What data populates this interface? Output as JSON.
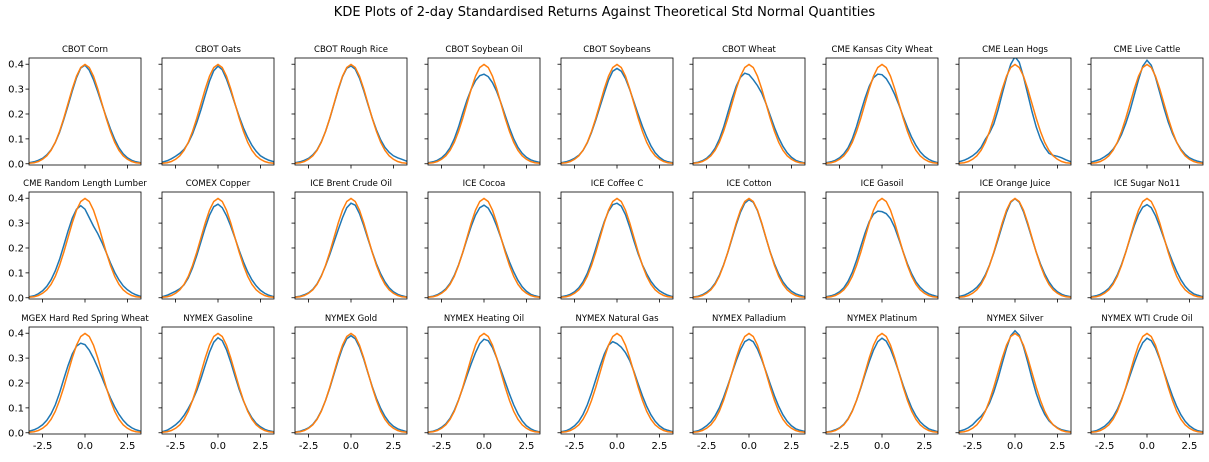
{
  "figure": {
    "title": "KDE Plots of 2-day Standardised Returns Against Theoretical Std Normal Quantities"
  },
  "colors": {
    "kde": "#1f77b4",
    "normal": "#ff7f0e",
    "axes": "#000000",
    "background": "#ffffff"
  },
  "chart_data": {
    "type": "line",
    "layout": "3x9 grid of subplots with shared x and y axes",
    "xlim": [
      -3.3,
      3.3
    ],
    "ylim": [
      -0.005,
      0.425
    ],
    "xticks": [
      -2.5,
      0.0,
      2.5
    ],
    "xtick_labels": [
      "-2.5",
      "0.0",
      "2.5"
    ],
    "yticks": [
      0.0,
      0.1,
      0.2,
      0.3,
      0.4
    ],
    "ytick_labels": [
      "0.0",
      "0.1",
      "0.2",
      "0.3",
      "0.4"
    ],
    "grid": false,
    "x": [
      -3.3,
      -3.0,
      -2.75,
      -2.5,
      -2.25,
      -2.0,
      -1.75,
      -1.5,
      -1.25,
      -1.0,
      -0.75,
      -0.5,
      -0.25,
      0.0,
      0.25,
      0.5,
      0.75,
      1.0,
      1.25,
      1.5,
      1.75,
      2.0,
      2.25,
      2.5,
      2.75,
      3.0,
      3.3
    ],
    "normal_reference": [
      0.002,
      0.004,
      0.009,
      0.018,
      0.032,
      0.054,
      0.086,
      0.13,
      0.183,
      0.242,
      0.301,
      0.352,
      0.387,
      0.399,
      0.387,
      0.352,
      0.301,
      0.242,
      0.183,
      0.13,
      0.086,
      0.054,
      0.032,
      0.018,
      0.009,
      0.004,
      0.002
    ],
    "subplots": [
      {
        "title": "CBOT Corn",
        "kde": [
          0.004,
          0.008,
          0.014,
          0.022,
          0.036,
          0.056,
          0.086,
          0.126,
          0.178,
          0.234,
          0.292,
          0.346,
          0.385,
          0.396,
          0.376,
          0.338,
          0.29,
          0.238,
          0.188,
          0.14,
          0.098,
          0.064,
          0.04,
          0.024,
          0.014,
          0.008,
          0.004
        ]
      },
      {
        "title": "CBOT Oats",
        "kde": [
          0.006,
          0.012,
          0.02,
          0.03,
          0.042,
          0.058,
          0.084,
          0.12,
          0.166,
          0.218,
          0.276,
          0.332,
          0.374,
          0.392,
          0.378,
          0.34,
          0.292,
          0.24,
          0.19,
          0.144,
          0.106,
          0.074,
          0.05,
          0.032,
          0.022,
          0.014,
          0.008
        ]
      },
      {
        "title": "CBOT Rough Rice",
        "kde": [
          0.004,
          0.008,
          0.014,
          0.022,
          0.036,
          0.056,
          0.088,
          0.13,
          0.182,
          0.24,
          0.298,
          0.35,
          0.384,
          0.393,
          0.38,
          0.344,
          0.294,
          0.238,
          0.184,
          0.136,
          0.096,
          0.066,
          0.046,
          0.032,
          0.024,
          0.018,
          0.01
        ]
      },
      {
        "title": "CBOT Soybean Oil",
        "kde": [
          0.004,
          0.008,
          0.014,
          0.024,
          0.04,
          0.064,
          0.1,
          0.148,
          0.204,
          0.256,
          0.3,
          0.334,
          0.354,
          0.36,
          0.35,
          0.326,
          0.29,
          0.244,
          0.194,
          0.144,
          0.1,
          0.066,
          0.042,
          0.026,
          0.016,
          0.01,
          0.005
        ]
      },
      {
        "title": "CBOT Soybeans",
        "kde": [
          0.004,
          0.008,
          0.014,
          0.022,
          0.034,
          0.054,
          0.084,
          0.126,
          0.176,
          0.23,
          0.284,
          0.336,
          0.372,
          0.383,
          0.372,
          0.342,
          0.298,
          0.248,
          0.198,
          0.15,
          0.108,
          0.072,
          0.044,
          0.026,
          0.014,
          0.008,
          0.004
        ]
      },
      {
        "title": "CBOT Wheat",
        "kde": [
          0.003,
          0.006,
          0.012,
          0.022,
          0.038,
          0.062,
          0.098,
          0.146,
          0.204,
          0.262,
          0.312,
          0.348,
          0.364,
          0.358,
          0.338,
          0.314,
          0.284,
          0.242,
          0.194,
          0.146,
          0.104,
          0.07,
          0.044,
          0.026,
          0.014,
          0.008,
          0.003
        ]
      },
      {
        "title": "CME Kansas City Wheat",
        "kde": [
          0.004,
          0.008,
          0.014,
          0.024,
          0.04,
          0.064,
          0.1,
          0.15,
          0.208,
          0.264,
          0.312,
          0.346,
          0.36,
          0.358,
          0.342,
          0.314,
          0.278,
          0.236,
          0.19,
          0.146,
          0.106,
          0.074,
          0.048,
          0.03,
          0.018,
          0.01,
          0.004
        ]
      },
      {
        "title": "CME Lean Hogs",
        "kde": [
          0.008,
          0.014,
          0.022,
          0.032,
          0.046,
          0.066,
          0.098,
          0.124,
          0.16,
          0.216,
          0.282,
          0.346,
          0.4,
          0.43,
          0.408,
          0.35,
          0.28,
          0.21,
          0.148,
          0.1,
          0.066,
          0.042,
          0.034,
          0.03,
          0.024,
          0.016,
          0.008
        ]
      },
      {
        "title": "CME Live Cattle",
        "kde": [
          0.006,
          0.012,
          0.018,
          0.028,
          0.04,
          0.058,
          0.084,
          0.118,
          0.162,
          0.214,
          0.276,
          0.338,
          0.392,
          0.416,
          0.396,
          0.348,
          0.286,
          0.224,
          0.168,
          0.122,
          0.086,
          0.058,
          0.038,
          0.024,
          0.016,
          0.01,
          0.005
        ]
      },
      {
        "title": "CME Random Length Lumber",
        "kde": [
          0.004,
          0.008,
          0.016,
          0.028,
          0.046,
          0.072,
          0.108,
          0.154,
          0.21,
          0.268,
          0.32,
          0.356,
          0.37,
          0.356,
          0.322,
          0.288,
          0.258,
          0.222,
          0.182,
          0.14,
          0.102,
          0.072,
          0.048,
          0.032,
          0.02,
          0.012,
          0.005
        ]
      },
      {
        "title": "COMEX Copper",
        "kde": [
          0.004,
          0.01,
          0.018,
          0.026,
          0.036,
          0.052,
          0.08,
          0.12,
          0.17,
          0.226,
          0.282,
          0.332,
          0.366,
          0.376,
          0.362,
          0.33,
          0.288,
          0.24,
          0.19,
          0.144,
          0.104,
          0.072,
          0.048,
          0.03,
          0.018,
          0.01,
          0.004
        ]
      },
      {
        "title": "ICE Brent Crude Oil",
        "kde": [
          0.003,
          0.006,
          0.012,
          0.02,
          0.034,
          0.056,
          0.088,
          0.128,
          0.174,
          0.224,
          0.274,
          0.322,
          0.362,
          0.38,
          0.372,
          0.338,
          0.29,
          0.236,
          0.184,
          0.136,
          0.096,
          0.064,
          0.04,
          0.024,
          0.014,
          0.008,
          0.003
        ]
      },
      {
        "title": "ICE Cocoa",
        "kde": [
          0.003,
          0.006,
          0.012,
          0.022,
          0.036,
          0.058,
          0.09,
          0.132,
          0.182,
          0.236,
          0.288,
          0.332,
          0.362,
          0.372,
          0.36,
          0.33,
          0.288,
          0.24,
          0.19,
          0.144,
          0.104,
          0.07,
          0.044,
          0.026,
          0.014,
          0.008,
          0.003
        ]
      },
      {
        "title": "ICE Coffee C",
        "kde": [
          0.004,
          0.008,
          0.014,
          0.024,
          0.04,
          0.064,
          0.098,
          0.144,
          0.198,
          0.254,
          0.306,
          0.348,
          0.374,
          0.38,
          0.368,
          0.334,
          0.284,
          0.228,
          0.176,
          0.132,
          0.096,
          0.066,
          0.044,
          0.028,
          0.018,
          0.01,
          0.004
        ]
      },
      {
        "title": "ICE Cotton",
        "kde": [
          0.003,
          0.006,
          0.012,
          0.022,
          0.036,
          0.058,
          0.09,
          0.132,
          0.182,
          0.238,
          0.294,
          0.344,
          0.38,
          0.394,
          0.384,
          0.35,
          0.298,
          0.24,
          0.184,
          0.136,
          0.096,
          0.064,
          0.042,
          0.026,
          0.016,
          0.01,
          0.004
        ]
      },
      {
        "title": "ICE Gasoil",
        "kde": [
          0.004,
          0.008,
          0.014,
          0.024,
          0.04,
          0.066,
          0.102,
          0.15,
          0.206,
          0.26,
          0.306,
          0.336,
          0.348,
          0.346,
          0.338,
          0.318,
          0.282,
          0.234,
          0.184,
          0.136,
          0.096,
          0.064,
          0.042,
          0.026,
          0.016,
          0.01,
          0.004
        ]
      },
      {
        "title": "ICE Orange Juice",
        "kde": [
          0.005,
          0.01,
          0.018,
          0.028,
          0.042,
          0.062,
          0.092,
          0.132,
          0.18,
          0.234,
          0.29,
          0.344,
          0.384,
          0.398,
          0.384,
          0.346,
          0.294,
          0.238,
          0.184,
          0.136,
          0.096,
          0.064,
          0.04,
          0.024,
          0.014,
          0.008,
          0.004
        ]
      },
      {
        "title": "ICE Sugar No11",
        "kde": [
          0.004,
          0.008,
          0.014,
          0.024,
          0.038,
          0.06,
          0.092,
          0.134,
          0.184,
          0.238,
          0.29,
          0.334,
          0.364,
          0.374,
          0.362,
          0.33,
          0.286,
          0.238,
          0.19,
          0.146,
          0.106,
          0.072,
          0.046,
          0.028,
          0.016,
          0.01,
          0.004
        ]
      },
      {
        "title": "MGEX Hard Red Spring Wheat",
        "kde": [
          0.006,
          0.012,
          0.02,
          0.032,
          0.05,
          0.076,
          0.112,
          0.16,
          0.216,
          0.27,
          0.316,
          0.348,
          0.36,
          0.354,
          0.332,
          0.3,
          0.262,
          0.222,
          0.18,
          0.14,
          0.104,
          0.074,
          0.05,
          0.032,
          0.02,
          0.012,
          0.006
        ]
      },
      {
        "title": "NYMEX Gasoline",
        "kde": [
          0.004,
          0.01,
          0.02,
          0.032,
          0.048,
          0.07,
          0.098,
          0.13,
          0.17,
          0.218,
          0.272,
          0.324,
          0.364,
          0.382,
          0.37,
          0.334,
          0.284,
          0.228,
          0.174,
          0.128,
          0.09,
          0.06,
          0.038,
          0.024,
          0.014,
          0.008,
          0.004
        ]
      },
      {
        "title": "NYMEX Gold",
        "kde": [
          0.003,
          0.006,
          0.012,
          0.02,
          0.034,
          0.056,
          0.088,
          0.13,
          0.18,
          0.236,
          0.292,
          0.342,
          0.378,
          0.39,
          0.378,
          0.344,
          0.296,
          0.24,
          0.186,
          0.138,
          0.098,
          0.066,
          0.042,
          0.026,
          0.016,
          0.01,
          0.004
        ]
      },
      {
        "title": "NYMEX Heating Oil",
        "kde": [
          0.003,
          0.006,
          0.012,
          0.022,
          0.036,
          0.058,
          0.09,
          0.132,
          0.18,
          0.23,
          0.278,
          0.322,
          0.358,
          0.376,
          0.37,
          0.342,
          0.3,
          0.252,
          0.204,
          0.156,
          0.112,
          0.076,
          0.048,
          0.028,
          0.016,
          0.008,
          0.003
        ]
      },
      {
        "title": "NYMEX Natural Gas",
        "kde": [
          0.004,
          0.008,
          0.016,
          0.028,
          0.046,
          0.074,
          0.112,
          0.16,
          0.214,
          0.268,
          0.316,
          0.352,
          0.366,
          0.358,
          0.344,
          0.322,
          0.29,
          0.246,
          0.196,
          0.148,
          0.106,
          0.072,
          0.046,
          0.028,
          0.016,
          0.01,
          0.004
        ]
      },
      {
        "title": "NYMEX Palladium",
        "kde": [
          0.004,
          0.008,
          0.016,
          0.028,
          0.044,
          0.068,
          0.1,
          0.142,
          0.19,
          0.24,
          0.29,
          0.334,
          0.366,
          0.376,
          0.366,
          0.336,
          0.294,
          0.246,
          0.196,
          0.148,
          0.106,
          0.072,
          0.046,
          0.028,
          0.016,
          0.01,
          0.005
        ]
      },
      {
        "title": "NYMEX Platinum",
        "kde": [
          0.003,
          0.006,
          0.012,
          0.02,
          0.034,
          0.056,
          0.088,
          0.13,
          0.18,
          0.234,
          0.286,
          0.332,
          0.366,
          0.38,
          0.368,
          0.336,
          0.292,
          0.242,
          0.19,
          0.142,
          0.1,
          0.068,
          0.044,
          0.028,
          0.016,
          0.01,
          0.004
        ]
      },
      {
        "title": "NYMEX Silver",
        "kde": [
          0.006,
          0.012,
          0.02,
          0.032,
          0.05,
          0.066,
          0.088,
          0.12,
          0.164,
          0.218,
          0.28,
          0.34,
          0.39,
          0.41,
          0.392,
          0.346,
          0.284,
          0.218,
          0.158,
          0.11,
          0.074,
          0.048,
          0.032,
          0.02,
          0.012,
          0.008,
          0.004
        ]
      },
      {
        "title": "NYMEX WTI Crude Oil",
        "kde": [
          0.004,
          0.008,
          0.016,
          0.026,
          0.042,
          0.064,
          0.094,
          0.134,
          0.18,
          0.23,
          0.28,
          0.326,
          0.362,
          0.38,
          0.37,
          0.34,
          0.296,
          0.246,
          0.196,
          0.148,
          0.106,
          0.072,
          0.046,
          0.028,
          0.016,
          0.008,
          0.004
        ]
      }
    ]
  }
}
